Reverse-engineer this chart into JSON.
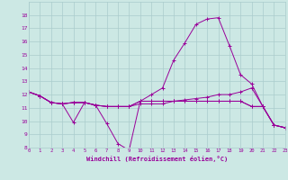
{
  "bg_color": "#cce8e4",
  "grid_color": "#aacccc",
  "line_color": "#990099",
  "xlabel": "Windchill (Refroidissement éolien,°C)",
  "xlabel_color": "#990099",
  "ylim": [
    8,
    19
  ],
  "xlim": [
    0,
    23
  ],
  "yticks": [
    8,
    9,
    10,
    11,
    12,
    13,
    14,
    15,
    16,
    17,
    18
  ],
  "xticks": [
    0,
    1,
    2,
    3,
    4,
    5,
    6,
    7,
    8,
    9,
    10,
    11,
    12,
    13,
    14,
    15,
    16,
    17,
    18,
    19,
    20,
    21,
    22,
    23
  ],
  "series": [
    {
      "x": [
        0,
        1,
        2,
        3,
        4,
        5,
        6,
        7,
        8,
        9,
        10,
        11,
        12,
        13,
        14,
        15,
        16,
        17,
        18,
        19,
        20,
        21,
        22,
        23
      ],
      "y": [
        12.2,
        11.9,
        11.4,
        11.3,
        11.4,
        11.4,
        11.2,
        11.1,
        11.1,
        11.1,
        11.5,
        11.5,
        11.5,
        11.5,
        11.5,
        11.5,
        11.5,
        11.5,
        11.5,
        11.5,
        11.1,
        11.1,
        9.7,
        9.5
      ]
    },
    {
      "x": [
        0,
        1,
        2,
        3,
        4,
        5,
        6,
        7,
        8,
        9,
        10,
        11,
        12,
        13,
        14,
        15,
        16,
        17,
        18,
        19,
        20,
        21,
        22,
        23
      ],
      "y": [
        12.2,
        11.9,
        11.4,
        11.3,
        9.9,
        11.4,
        11.2,
        9.8,
        8.3,
        7.8,
        11.5,
        11.5,
        11.5,
        11.5,
        11.5,
        11.5,
        11.5,
        11.5,
        11.5,
        11.5,
        11.1,
        11.1,
        9.7,
        9.5
      ]
    },
    {
      "x": [
        0,
        1,
        2,
        3,
        4,
        5,
        6,
        7,
        8,
        9,
        10,
        11,
        12,
        13,
        14,
        15,
        16,
        17,
        18,
        19,
        20,
        21,
        22,
        23
      ],
      "y": [
        12.2,
        11.9,
        11.4,
        11.3,
        11.4,
        11.4,
        11.2,
        11.1,
        11.1,
        11.1,
        11.5,
        12.0,
        12.5,
        14.6,
        15.9,
        17.3,
        17.7,
        17.8,
        15.7,
        13.5,
        12.8,
        11.1,
        9.7,
        9.5
      ]
    },
    {
      "x": [
        0,
        1,
        2,
        3,
        4,
        5,
        6,
        7,
        8,
        9,
        10,
        11,
        12,
        13,
        14,
        15,
        16,
        17,
        18,
        19,
        20,
        21,
        22,
        23
      ],
      "y": [
        12.2,
        11.9,
        11.4,
        11.3,
        11.4,
        11.4,
        11.2,
        11.1,
        11.1,
        11.1,
        11.3,
        11.3,
        11.3,
        11.5,
        11.6,
        11.7,
        11.8,
        12.0,
        12.0,
        12.2,
        12.5,
        11.1,
        9.7,
        9.5
      ]
    }
  ]
}
